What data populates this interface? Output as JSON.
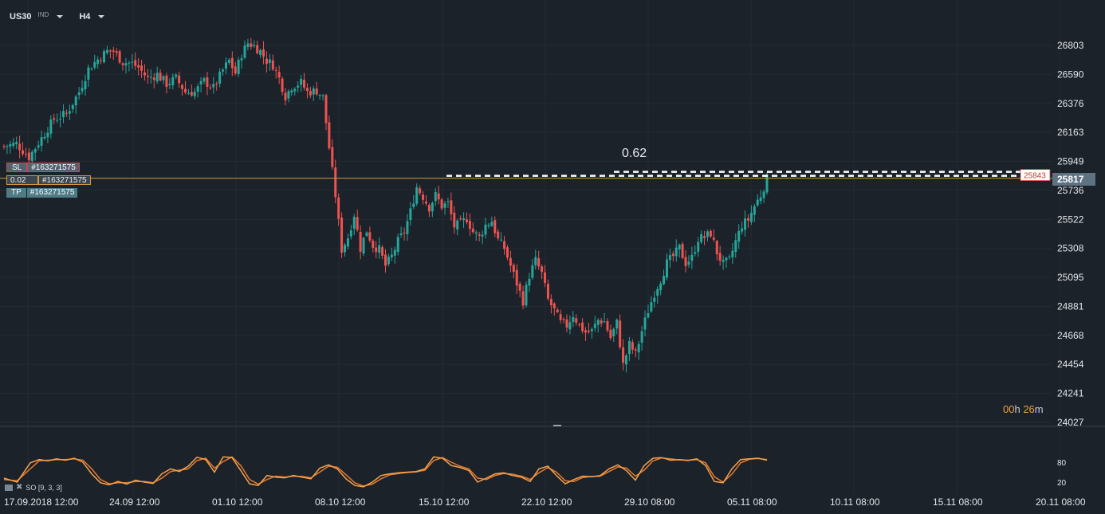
{
  "toolbar": {
    "symbol": "US30",
    "symbol_type": "IND",
    "timeframe": "H4"
  },
  "orders": {
    "sl": {
      "label": "SL",
      "id": "#163271575"
    },
    "position": {
      "volume": "0.02",
      "id": "#163271575"
    },
    "tp": {
      "label": "TP",
      "id": "#163271575"
    }
  },
  "annotation": "0.62",
  "timer": {
    "hours": "00",
    "h_unit": "h",
    "minutes": "26",
    "m_unit": "m"
  },
  "indicator": {
    "label": "SO [9, 3, 3]",
    "levels": [
      80,
      20
    ]
  },
  "colors": {
    "background": "#1b222a",
    "up": "#26a69a",
    "down": "#ef5350",
    "stoch_k": "#f5a34c",
    "stoch_d": "#e87a2e",
    "position_line": "#d29a3a"
  },
  "chart_data": {
    "type": "candlestick",
    "symbol": "US30",
    "timeframe": "H4",
    "y_ticks": [
      26803,
      26590,
      26376,
      26163,
      25949,
      25736,
      25522,
      25308,
      25095,
      24881,
      24668,
      24454,
      24241,
      24027
    ],
    "ylim": [
      24027,
      26803
    ],
    "x_ticks": [
      "17.09.2018  12:00",
      "24.09  12:00",
      "01.10  12:00",
      "08.10  12:00",
      "15.10  12:00",
      "22.10  12:00",
      "29.10  08:00",
      "05.11  08:00",
      "10.11  08:00",
      "15.11  08:00",
      "20.11  08:00"
    ],
    "current_price": 25817,
    "current_price_label": "25817",
    "open_price_label": "25843",
    "position_price": 25843,
    "close_path": [
      [
        0,
        26060
      ],
      [
        4,
        26080
      ],
      [
        8,
        25980
      ],
      [
        12,
        26120
      ],
      [
        16,
        26260
      ],
      [
        20,
        26300
      ],
      [
        24,
        26460
      ],
      [
        27,
        26630
      ],
      [
        30,
        26700
      ],
      [
        33,
        26760
      ],
      [
        35,
        26760
      ],
      [
        38,
        26680
      ],
      [
        41,
        26670
      ],
      [
        43,
        26640
      ],
      [
        46,
        26560
      ],
      [
        49,
        26590
      ],
      [
        52,
        26520
      ],
      [
        55,
        26560
      ],
      [
        58,
        26460
      ],
      [
        61,
        26460
      ],
      [
        64,
        26540
      ],
      [
        67,
        26490
      ],
      [
        70,
        26620
      ],
      [
        72,
        26690
      ],
      [
        74,
        26600
      ],
      [
        76,
        26740
      ],
      [
        78,
        26820
      ],
      [
        80,
        26800
      ],
      [
        82,
        26760
      ],
      [
        84,
        26690
      ],
      [
        86,
        26660
      ],
      [
        88,
        26560
      ],
      [
        90,
        26430
      ],
      [
        92,
        26500
      ],
      [
        95,
        26530
      ],
      [
        97,
        26460
      ],
      [
        100,
        26470
      ],
      [
        102,
        26420
      ],
      [
        104,
        26050
      ],
      [
        106,
        25700
      ],
      [
        108,
        25300
      ],
      [
        110,
        25390
      ],
      [
        112,
        25560
      ],
      [
        114,
        25310
      ],
      [
        116,
        25440
      ],
      [
        118,
        25330
      ],
      [
        120,
        25300
      ],
      [
        122,
        25180
      ],
      [
        124,
        25250
      ],
      [
        126,
        25360
      ],
      [
        128,
        25430
      ],
      [
        130,
        25580
      ],
      [
        132,
        25760
      ],
      [
        134,
        25690
      ],
      [
        136,
        25610
      ],
      [
        138,
        25700
      ],
      [
        140,
        25620
      ],
      [
        142,
        25640
      ],
      [
        144,
        25470
      ],
      [
        146,
        25490
      ],
      [
        148,
        25530
      ],
      [
        150,
        25430
      ],
      [
        152,
        25390
      ],
      [
        154,
        25480
      ],
      [
        156,
        25510
      ],
      [
        158,
        25370
      ],
      [
        160,
        25310
      ],
      [
        162,
        25180
      ],
      [
        164,
        25050
      ],
      [
        166,
        24920
      ],
      [
        168,
        25110
      ],
      [
        170,
        25220
      ],
      [
        172,
        25120
      ],
      [
        174,
        24930
      ],
      [
        176,
        24850
      ],
      [
        178,
        24760
      ],
      [
        180,
        24740
      ],
      [
        182,
        24820
      ],
      [
        184,
        24740
      ],
      [
        186,
        24690
      ],
      [
        188,
        24700
      ],
      [
        190,
        24780
      ],
      [
        192,
        24770
      ],
      [
        194,
        24650
      ],
      [
        196,
        24760
      ],
      [
        198,
        24450
      ],
      [
        200,
        24600
      ],
      [
        202,
        24530
      ],
      [
        204,
        24700
      ],
      [
        206,
        24850
      ],
      [
        208,
        24980
      ],
      [
        210,
        25080
      ],
      [
        212,
        25200
      ],
      [
        214,
        25250
      ],
      [
        216,
        25310
      ],
      [
        218,
        25200
      ],
      [
        220,
        25240
      ],
      [
        222,
        25380
      ],
      [
        224,
        25390
      ],
      [
        226,
        25420
      ],
      [
        228,
        25280
      ],
      [
        230,
        25190
      ],
      [
        232,
        25220
      ],
      [
        234,
        25360
      ],
      [
        236,
        25480
      ],
      [
        238,
        25520
      ],
      [
        240,
        25620
      ],
      [
        242,
        25700
      ],
      [
        244,
        25820
      ]
    ],
    "stochastic": {
      "levels": [
        80,
        20
      ],
      "k_path": [
        [
          0,
          32
        ],
        [
          3,
          20
        ],
        [
          6,
          78
        ],
        [
          8,
          88
        ],
        [
          10,
          84
        ],
        [
          12,
          90
        ],
        [
          14,
          86
        ],
        [
          16,
          92
        ],
        [
          18,
          80
        ],
        [
          20,
          45
        ],
        [
          22,
          18
        ],
        [
          24,
          12
        ],
        [
          26,
          22
        ],
        [
          28,
          14
        ],
        [
          30,
          26
        ],
        [
          32,
          20
        ],
        [
          34,
          16
        ],
        [
          36,
          45
        ],
        [
          38,
          60
        ],
        [
          40,
          52
        ],
        [
          42,
          68
        ],
        [
          44,
          95
        ],
        [
          46,
          88
        ],
        [
          48,
          50
        ],
        [
          50,
          96
        ],
        [
          52,
          94
        ],
        [
          54,
          55
        ],
        [
          56,
          15
        ],
        [
          58,
          10
        ],
        [
          60,
          40
        ],
        [
          62,
          35
        ],
        [
          64,
          33
        ],
        [
          66,
          40
        ],
        [
          68,
          35
        ],
        [
          70,
          30
        ],
        [
          72,
          62
        ],
        [
          74,
          72
        ],
        [
          76,
          60
        ],
        [
          78,
          30
        ],
        [
          80,
          10
        ],
        [
          82,
          6
        ],
        [
          84,
          20
        ],
        [
          86,
          40
        ],
        [
          88,
          45
        ],
        [
          90,
          48
        ],
        [
          92,
          50
        ],
        [
          94,
          52
        ],
        [
          96,
          60
        ],
        [
          98,
          96
        ],
        [
          100,
          92
        ],
        [
          102,
          70
        ],
        [
          104,
          64
        ],
        [
          106,
          55
        ],
        [
          108,
          20
        ],
        [
          110,
          32
        ],
        [
          112,
          45
        ],
        [
          114,
          48
        ],
        [
          116,
          40
        ],
        [
          118,
          35
        ],
        [
          120,
          22
        ],
        [
          122,
          60
        ],
        [
          124,
          68
        ],
        [
          126,
          40
        ],
        [
          128,
          15
        ],
        [
          130,
          28
        ],
        [
          132,
          38
        ],
        [
          134,
          36
        ],
        [
          136,
          40
        ],
        [
          138,
          60
        ],
        [
          140,
          72
        ],
        [
          142,
          54
        ],
        [
          144,
          26
        ],
        [
          146,
          70
        ],
        [
          148,
          92
        ],
        [
          150,
          94
        ],
        [
          152,
          86
        ],
        [
          154,
          88
        ],
        [
          156,
          85
        ],
        [
          158,
          90
        ],
        [
          160,
          70
        ],
        [
          162,
          22
        ],
        [
          164,
          18
        ],
        [
          166,
          60
        ],
        [
          168,
          88
        ],
        [
          170,
          90
        ],
        [
          172,
          92
        ],
        [
          174,
          86
        ]
      ],
      "d_path": [
        [
          0,
          28
        ],
        [
          3,
          24
        ],
        [
          6,
          60
        ],
        [
          8,
          84
        ],
        [
          10,
          86
        ],
        [
          12,
          88
        ],
        [
          14,
          88
        ],
        [
          16,
          90
        ],
        [
          18,
          86
        ],
        [
          20,
          60
        ],
        [
          22,
          28
        ],
        [
          24,
          15
        ],
        [
          26,
          18
        ],
        [
          28,
          18
        ],
        [
          30,
          22
        ],
        [
          32,
          22
        ],
        [
          34,
          18
        ],
        [
          36,
          32
        ],
        [
          38,
          52
        ],
        [
          40,
          56
        ],
        [
          42,
          60
        ],
        [
          44,
          85
        ],
        [
          46,
          92
        ],
        [
          48,
          62
        ],
        [
          50,
          82
        ],
        [
          52,
          96
        ],
        [
          54,
          70
        ],
        [
          56,
          28
        ],
        [
          58,
          14
        ],
        [
          60,
          28
        ],
        [
          62,
          38
        ],
        [
          64,
          35
        ],
        [
          66,
          38
        ],
        [
          68,
          37
        ],
        [
          70,
          33
        ],
        [
          72,
          50
        ],
        [
          74,
          68
        ],
        [
          76,
          65
        ],
        [
          78,
          42
        ],
        [
          80,
          18
        ],
        [
          82,
          8
        ],
        [
          84,
          14
        ],
        [
          86,
          30
        ],
        [
          88,
          42
        ],
        [
          90,
          46
        ],
        [
          92,
          49
        ],
        [
          94,
          51
        ],
        [
          96,
          56
        ],
        [
          98,
          85
        ],
        [
          100,
          94
        ],
        [
          102,
          80
        ],
        [
          104,
          68
        ],
        [
          106,
          60
        ],
        [
          108,
          32
        ],
        [
          110,
          28
        ],
        [
          112,
          40
        ],
        [
          114,
          46
        ],
        [
          116,
          44
        ],
        [
          118,
          38
        ],
        [
          120,
          28
        ],
        [
          122,
          48
        ],
        [
          124,
          64
        ],
        [
          126,
          50
        ],
        [
          128,
          24
        ],
        [
          130,
          22
        ],
        [
          132,
          34
        ],
        [
          134,
          37
        ],
        [
          136,
          38
        ],
        [
          138,
          52
        ],
        [
          140,
          66
        ],
        [
          142,
          62
        ],
        [
          144,
          38
        ],
        [
          146,
          56
        ],
        [
          148,
          84
        ],
        [
          150,
          93
        ],
        [
          152,
          90
        ],
        [
          154,
          87
        ],
        [
          156,
          86
        ],
        [
          158,
          88
        ],
        [
          160,
          78
        ],
        [
          162,
          36
        ],
        [
          164,
          20
        ],
        [
          166,
          44
        ],
        [
          168,
          78
        ],
        [
          170,
          89
        ],
        [
          172,
          91
        ],
        [
          174,
          88
        ]
      ]
    }
  }
}
